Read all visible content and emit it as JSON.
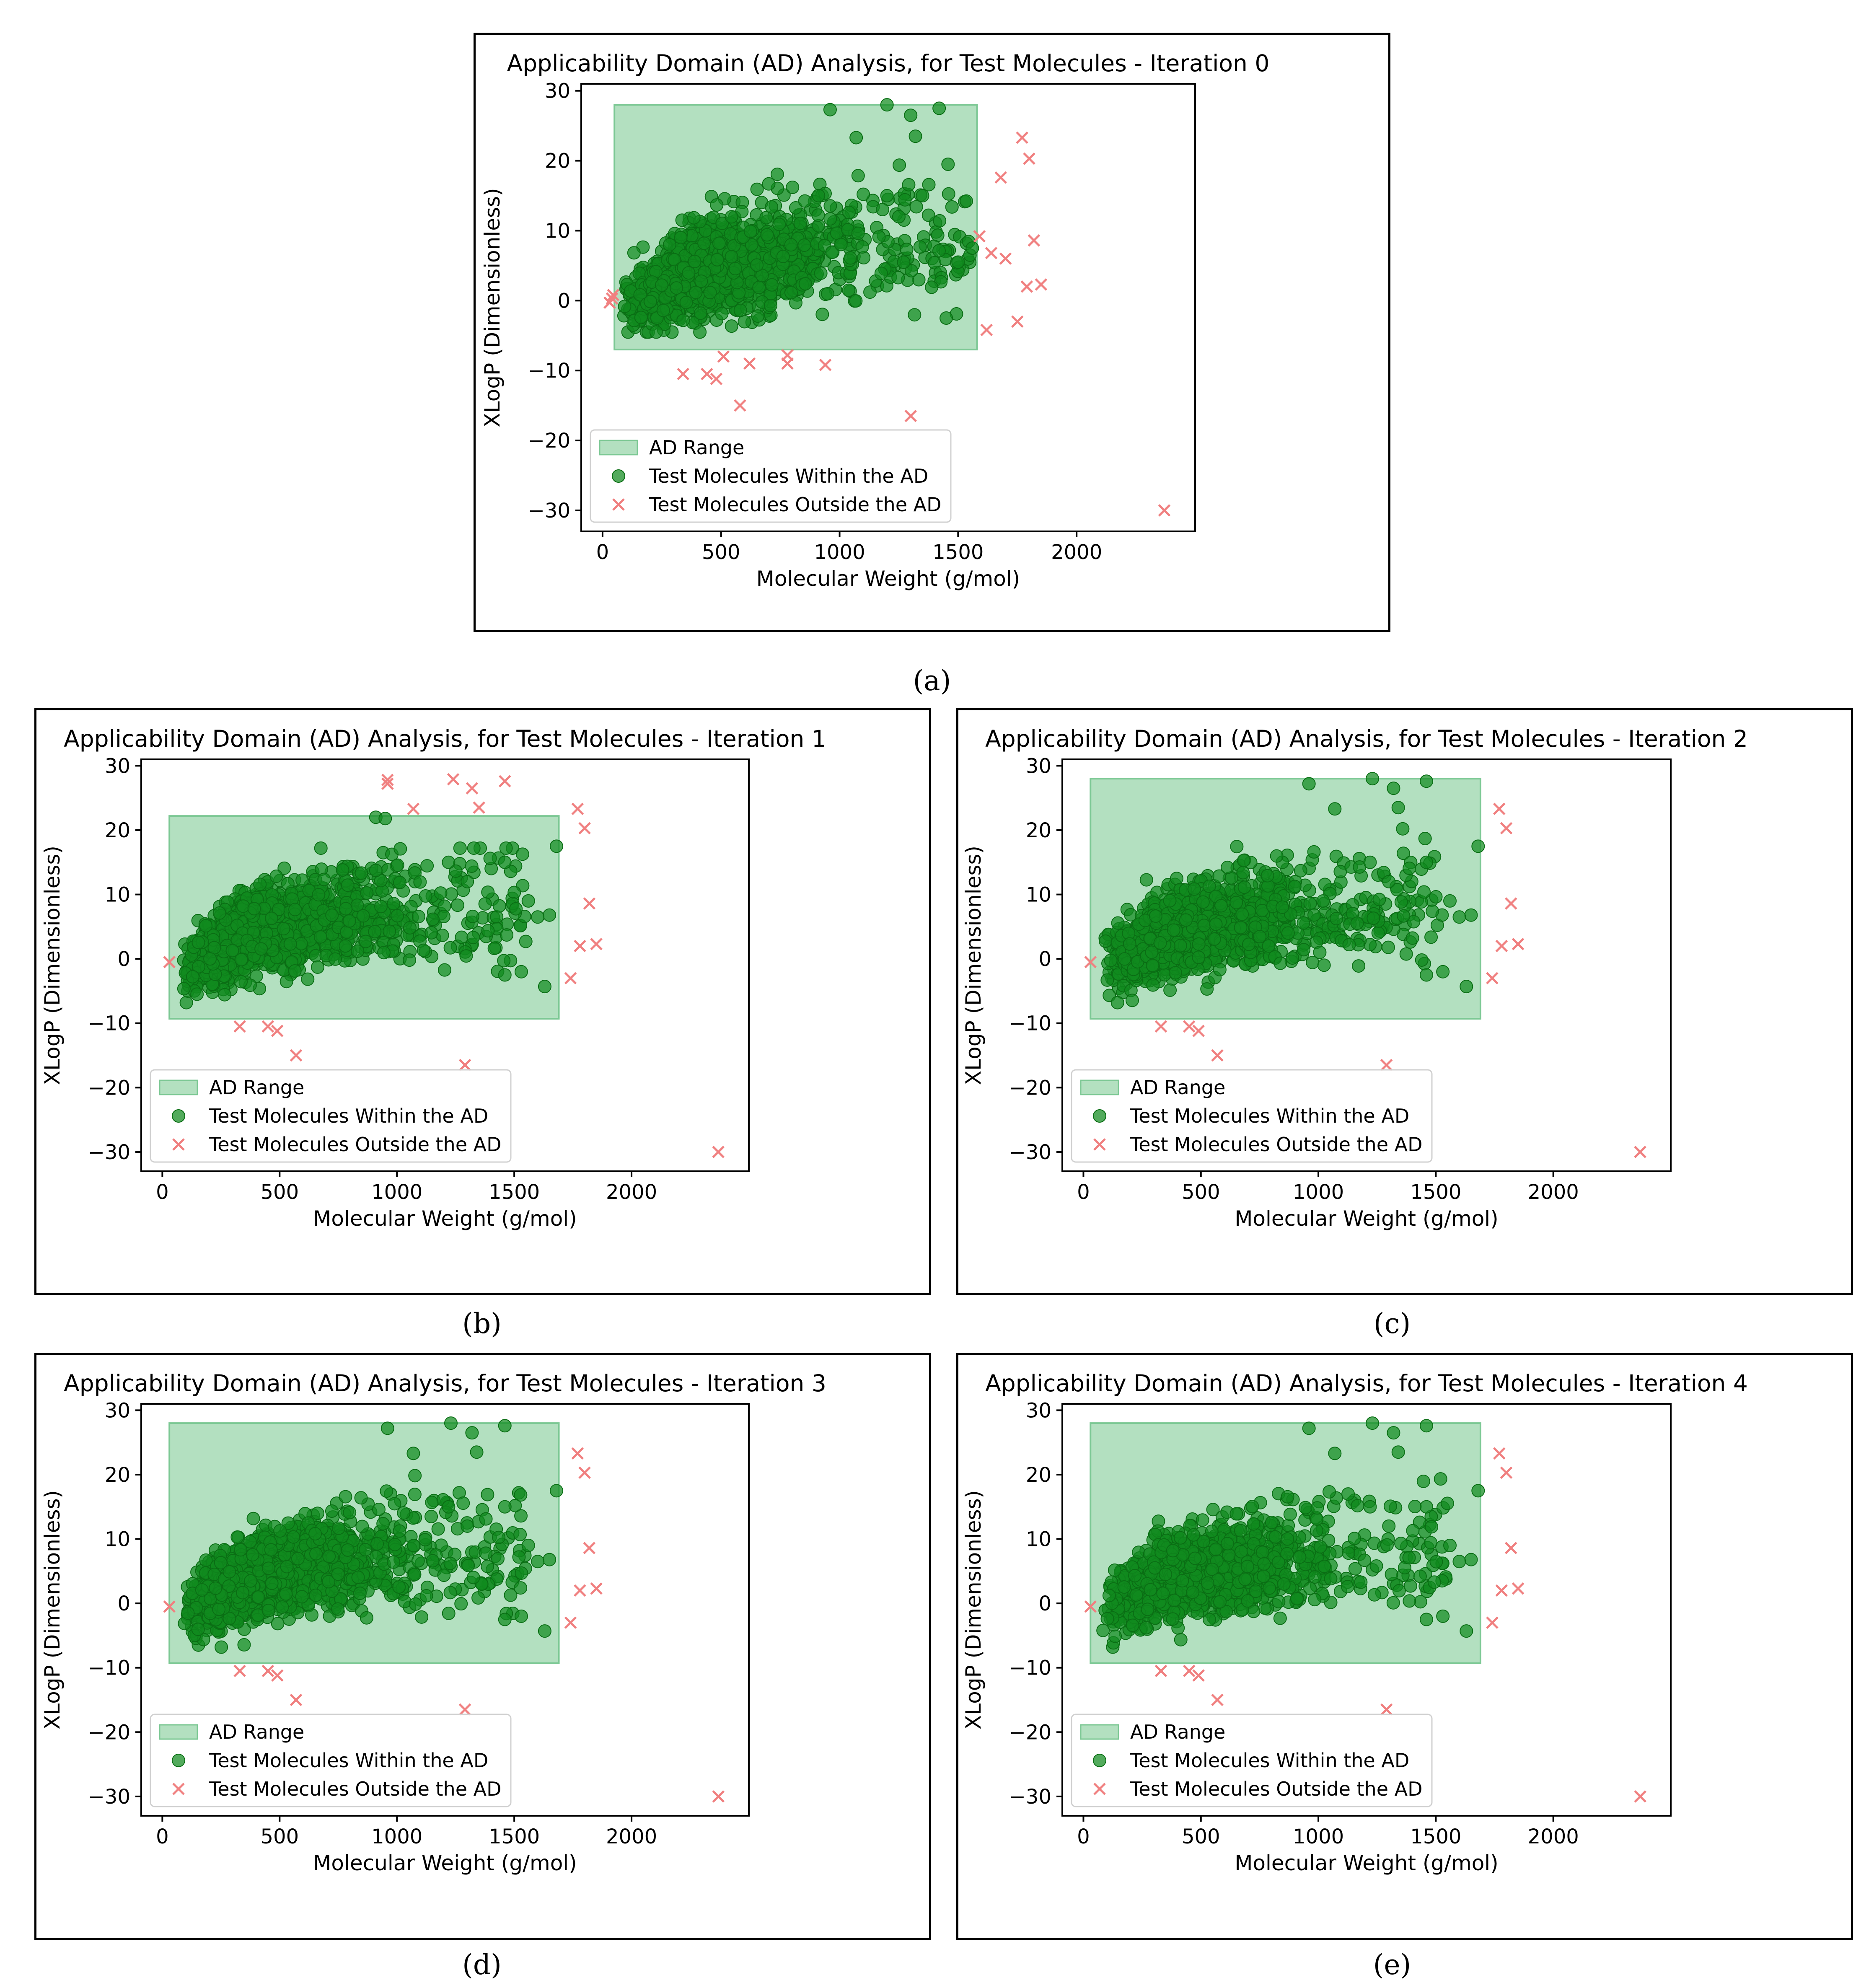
{
  "chart_data": [
    {
      "id": "a",
      "type": "scatter",
      "title": "Applicability Domain (AD) Analysis, for Test Molecules - Iteration 0",
      "xlabel": "Molecular Weight (g/mol)",
      "ylabel": "XLogP (Dimensionless)",
      "xlim": [
        -90,
        2500
      ],
      "ylim": [
        -33,
        31
      ],
      "xticks": [
        0,
        500,
        1000,
        1500,
        2000
      ],
      "yticks": [
        -30,
        -20,
        -10,
        0,
        10,
        20,
        30
      ],
      "legend": [
        "AD Range",
        "Test Molecules Within the AD",
        "Test Molecules Outside the AD"
      ],
      "legend_position": "lower-left",
      "ad_range": {
        "x": [
          50,
          1580
        ],
        "y": [
          -7,
          28
        ]
      },
      "inside_highlights": [
        [
          1200,
          28
        ],
        [
          1300,
          26.5
        ],
        [
          1320,
          23.5
        ],
        [
          1420,
          27.5
        ],
        [
          960,
          27.3
        ],
        [
          1070,
          23.3
        ],
        [
          1550,
          6.5
        ],
        [
          1500,
          5.5
        ],
        [
          1450,
          -2.5
        ],
        [
          1250,
          12
        ],
        [
          1100,
          15.2
        ],
        [
          1200,
          15
        ],
        [
          1350,
          15
        ],
        [
          1560,
          7.5
        ]
      ],
      "outside": [
        [
          1770,
          23.3
        ],
        [
          1800,
          20.3
        ],
        [
          1680,
          17.6
        ],
        [
          1590,
          9.2
        ],
        [
          1820,
          8.6
        ],
        [
          1640,
          6.8
        ],
        [
          1700,
          6
        ],
        [
          1850,
          2.3
        ],
        [
          1790,
          2
        ],
        [
          1620,
          -4.2
        ],
        [
          1750,
          -3
        ],
        [
          340,
          -10.5
        ],
        [
          440,
          -10.5
        ],
        [
          480,
          -11.2
        ],
        [
          510,
          -8
        ],
        [
          620,
          -9
        ],
        [
          780,
          -7.8
        ],
        [
          780,
          -9
        ],
        [
          940,
          -9.2
        ],
        [
          580,
          -15
        ],
        [
          1300,
          -16.5
        ],
        [
          2370,
          -30
        ],
        [
          40,
          0.3
        ],
        [
          30,
          -0.3
        ],
        [
          45,
          0.8
        ]
      ],
      "caption": "(a)"
    },
    {
      "id": "b",
      "type": "scatter",
      "title": "Applicability Domain (AD) Analysis, for Test Molecules - Iteration 1",
      "xlabel": "Molecular Weight (g/mol)",
      "ylabel": "XLogP (Dimensionless)",
      "xlim": [
        -90,
        2500
      ],
      "ylim": [
        -33,
        31
      ],
      "xticks": [
        0,
        500,
        1000,
        1500,
        2000
      ],
      "yticks": [
        -30,
        -20,
        -10,
        0,
        10,
        20,
        30
      ],
      "legend": [
        "AD Range",
        "Test Molecules Within the AD",
        "Test Molecules Outside the AD"
      ],
      "legend_position": "lower-left",
      "ad_range": {
        "x": [
          30,
          1690
        ],
        "y": [
          -9.3,
          22.2
        ]
      },
      "inside_highlights": [
        [
          910,
          22
        ],
        [
          950,
          21.8
        ],
        [
          1680,
          17.5
        ],
        [
          1650,
          6.8
        ],
        [
          1600,
          6.5
        ],
        [
          1530,
          -2
        ],
        [
          1630,
          -4.3
        ],
        [
          1460,
          -2.5
        ],
        [
          1300,
          12
        ],
        [
          1460,
          15
        ],
        [
          1220,
          15
        ],
        [
          1560,
          9
        ]
      ],
      "outside": [
        [
          960,
          27.8
        ],
        [
          960,
          27.2
        ],
        [
          1070,
          23.3
        ],
        [
          1240,
          27.9
        ],
        [
          1320,
          26.5
        ],
        [
          1350,
          23.5
        ],
        [
          1460,
          27.6
        ],
        [
          1770,
          23.3
        ],
        [
          1800,
          20.3
        ],
        [
          1820,
          8.6
        ],
        [
          1780,
          2
        ],
        [
          1850,
          2.3
        ],
        [
          1740,
          -3
        ],
        [
          330,
          -10.5
        ],
        [
          450,
          -10.5
        ],
        [
          490,
          -11.2
        ],
        [
          570,
          -15
        ],
        [
          1290,
          -16.5
        ],
        [
          2370,
          -30
        ],
        [
          30,
          -0.5
        ]
      ],
      "caption": "(b)"
    },
    {
      "id": "c",
      "type": "scatter",
      "title": "Applicability Domain (AD) Analysis, for Test Molecules - Iteration 2",
      "xlabel": "Molecular Weight (g/mol)",
      "ylabel": "XLogP (Dimensionless)",
      "xlim": [
        -90,
        2500
      ],
      "ylim": [
        -33,
        31
      ],
      "xticks": [
        0,
        500,
        1000,
        1500,
        2000
      ],
      "yticks": [
        -30,
        -20,
        -10,
        0,
        10,
        20,
        30
      ],
      "legend": [
        "AD Range",
        "Test Molecules Within the AD",
        "Test Molecules Outside the AD"
      ],
      "legend_position": "lower-left",
      "ad_range": {
        "x": [
          30,
          1690
        ],
        "y": [
          -9.3,
          28
        ]
      },
      "inside_highlights": [
        [
          1230,
          28
        ],
        [
          1320,
          26.5
        ],
        [
          1340,
          23.5
        ],
        [
          1460,
          27.6
        ],
        [
          960,
          27.2
        ],
        [
          1070,
          23.3
        ],
        [
          1680,
          17.5
        ],
        [
          1650,
          6.8
        ],
        [
          1600,
          6.5
        ],
        [
          1530,
          -2
        ],
        [
          1630,
          -4.3
        ],
        [
          1460,
          -2.5
        ],
        [
          1300,
          12
        ],
        [
          1460,
          15
        ],
        [
          1220,
          15
        ],
        [
          1560,
          9
        ]
      ],
      "outside": [
        [
          1770,
          23.3
        ],
        [
          1800,
          20.3
        ],
        [
          1820,
          8.6
        ],
        [
          1780,
          2
        ],
        [
          1850,
          2.3
        ],
        [
          1740,
          -3
        ],
        [
          330,
          -10.5
        ],
        [
          450,
          -10.5
        ],
        [
          490,
          -11.2
        ],
        [
          570,
          -15
        ],
        [
          1290,
          -16.5
        ],
        [
          2370,
          -30
        ],
        [
          30,
          -0.5
        ]
      ],
      "caption": "(c)"
    },
    {
      "id": "d",
      "type": "scatter",
      "title": "Applicability Domain (AD) Analysis, for Test Molecules - Iteration 3",
      "xlabel": "Molecular Weight (g/mol)",
      "ylabel": "XLogP (Dimensionless)",
      "xlim": [
        -90,
        2500
      ],
      "ylim": [
        -33,
        31
      ],
      "xticks": [
        0,
        500,
        1000,
        1500,
        2000
      ],
      "yticks": [
        -30,
        -20,
        -10,
        0,
        10,
        20,
        30
      ],
      "legend": [
        "AD Range",
        "Test Molecules Within the AD",
        "Test Molecules Outside the AD"
      ],
      "legend_position": "lower-left",
      "ad_range": {
        "x": [
          30,
          1690
        ],
        "y": [
          -9.3,
          28
        ]
      },
      "inside_highlights": [
        [
          1230,
          28
        ],
        [
          1320,
          26.5
        ],
        [
          1340,
          23.5
        ],
        [
          1460,
          27.6
        ],
        [
          960,
          27.2
        ],
        [
          1070,
          23.3
        ],
        [
          1680,
          17.5
        ],
        [
          1650,
          6.8
        ],
        [
          1600,
          6.5
        ],
        [
          1530,
          -2
        ],
        [
          1630,
          -4.3
        ],
        [
          1460,
          -2.5
        ],
        [
          1300,
          12
        ],
        [
          1460,
          15
        ],
        [
          1220,
          15
        ],
        [
          1560,
          9
        ]
      ],
      "outside": [
        [
          1770,
          23.3
        ],
        [
          1800,
          20.3
        ],
        [
          1820,
          8.6
        ],
        [
          1780,
          2
        ],
        [
          1850,
          2.3
        ],
        [
          1740,
          -3
        ],
        [
          330,
          -10.5
        ],
        [
          450,
          -10.5
        ],
        [
          490,
          -11.2
        ],
        [
          570,
          -15
        ],
        [
          1290,
          -16.5
        ],
        [
          2370,
          -30
        ],
        [
          30,
          -0.5
        ]
      ],
      "caption": "(d)"
    },
    {
      "id": "e",
      "type": "scatter",
      "title": "Applicability Domain (AD) Analysis, for Test Molecules - Iteration 4",
      "xlabel": "Molecular Weight (g/mol)",
      "ylabel": "XLogP (Dimensionless)",
      "xlim": [
        -90,
        2500
      ],
      "ylim": [
        -33,
        31
      ],
      "xticks": [
        0,
        500,
        1000,
        1500,
        2000
      ],
      "yticks": [
        -30,
        -20,
        -10,
        0,
        10,
        20,
        30
      ],
      "legend": [
        "AD Range",
        "Test Molecules Within the AD",
        "Test Molecules Outside the AD"
      ],
      "legend_position": "lower-left",
      "ad_range": {
        "x": [
          30,
          1690
        ],
        "y": [
          -9.3,
          28
        ]
      },
      "inside_highlights": [
        [
          1230,
          28
        ],
        [
          1320,
          26.5
        ],
        [
          1340,
          23.5
        ],
        [
          1460,
          27.6
        ],
        [
          960,
          27.2
        ],
        [
          1070,
          23.3
        ],
        [
          1680,
          17.5
        ],
        [
          1650,
          6.8
        ],
        [
          1600,
          6.5
        ],
        [
          1530,
          -2
        ],
        [
          1630,
          -4.3
        ],
        [
          1460,
          -2.5
        ],
        [
          1300,
          12
        ],
        [
          1460,
          15
        ],
        [
          1220,
          15
        ],
        [
          1560,
          9
        ]
      ],
      "outside": [
        [
          1770,
          23.3
        ],
        [
          1800,
          20.3
        ],
        [
          1820,
          8.6
        ],
        [
          1780,
          2
        ],
        [
          1850,
          2.3
        ],
        [
          1740,
          -3
        ],
        [
          330,
          -10.5
        ],
        [
          450,
          -10.5
        ],
        [
          490,
          -11.2
        ],
        [
          570,
          -15
        ],
        [
          1290,
          -16.5
        ],
        [
          2370,
          -30
        ],
        [
          30,
          -0.5
        ]
      ],
      "caption": "(e)"
    }
  ],
  "colors": {
    "ad_fill": "#b3e0c0",
    "ad_edge": "#7cc894",
    "inside_point": "#108a1e",
    "inside_edge": "#0a6e14",
    "outside_marker": "#f08080",
    "axis": "#000000"
  }
}
